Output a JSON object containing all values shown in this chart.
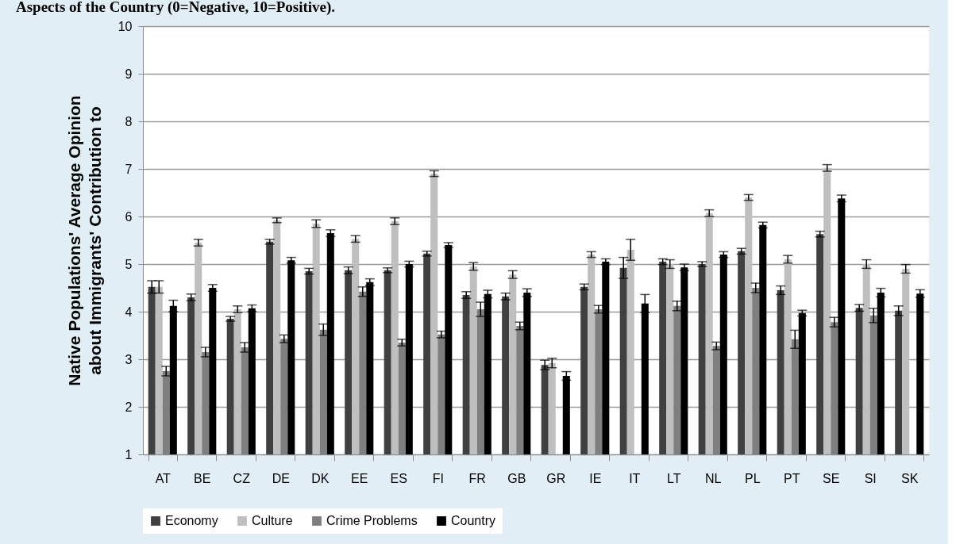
{
  "chart_data": {
    "type": "bar",
    "title": "Aspects of the Country (0=Negative, 10=Positive).",
    "ylabel": "Native Populations' Average Opinion\nabout Immigrants' Contribution to",
    "categories": [
      "AT",
      "BE",
      "CZ",
      "DE",
      "DK",
      "EE",
      "ES",
      "FI",
      "FR",
      "GB",
      "GR",
      "IE",
      "IT",
      "LT",
      "NL",
      "PL",
      "PT",
      "SE",
      "SI",
      "SK"
    ],
    "series": [
      {
        "name": "Economy",
        "color": "#404040",
        "values": [
          4.52,
          4.3,
          3.85,
          5.47,
          4.85,
          4.87,
          4.87,
          5.22,
          4.35,
          4.32,
          2.88,
          4.52,
          4.92,
          5.05,
          5.0,
          5.27,
          4.45,
          5.63,
          4.08,
          4.02
        ],
        "errors": [
          0.13,
          0.07,
          0.05,
          0.05,
          0.06,
          0.07,
          0.05,
          0.05,
          0.07,
          0.07,
          0.1,
          0.06,
          0.22,
          0.06,
          0.05,
          0.06,
          0.09,
          0.06,
          0.07,
          0.1
        ]
      },
      {
        "name": "Culture",
        "color": "#bfbfbf",
        "values": [
          4.52,
          5.45,
          4.05,
          5.92,
          5.85,
          5.53,
          5.9,
          6.9,
          4.95,
          4.78,
          2.92,
          5.2,
          5.3,
          5.0,
          6.07,
          6.4,
          5.1,
          7.02,
          5.0,
          4.9
        ],
        "errors": [
          0.13,
          0.07,
          0.07,
          0.05,
          0.08,
          0.07,
          0.07,
          0.06,
          0.08,
          0.08,
          0.1,
          0.06,
          0.22,
          0.09,
          0.07,
          0.06,
          0.08,
          0.07,
          0.09,
          0.09
        ]
      },
      {
        "name": "Crime Problems",
        "color": "#7f7f7f",
        "values": [
          2.75,
          3.15,
          3.25,
          3.43,
          3.62,
          4.42,
          3.35,
          3.52,
          4.05,
          3.7,
          null,
          4.05,
          null,
          4.12,
          3.28,
          4.5,
          3.42,
          3.78,
          3.92,
          null
        ],
        "errors": [
          0.1,
          0.1,
          0.1,
          0.08,
          0.12,
          0.1,
          0.07,
          0.07,
          0.15,
          0.08,
          null,
          0.08,
          null,
          0.1,
          0.08,
          0.1,
          0.19,
          0.1,
          0.15,
          null
        ]
      },
      {
        "name": "Country",
        "color": "#000000",
        "values": [
          4.12,
          4.5,
          4.07,
          5.08,
          5.65,
          4.62,
          5.0,
          5.4,
          4.37,
          4.4,
          2.65,
          5.05,
          4.17,
          4.93,
          5.2,
          5.82,
          3.97,
          6.38,
          4.4,
          4.38
        ],
        "errors": [
          0.12,
          0.07,
          0.07,
          0.06,
          0.07,
          0.07,
          0.06,
          0.05,
          0.08,
          0.08,
          0.09,
          0.06,
          0.19,
          0.07,
          0.06,
          0.06,
          0.06,
          0.07,
          0.09,
          0.08
        ]
      }
    ],
    "ylim": [
      1,
      10
    ],
    "yticks": [
      1,
      2,
      3,
      4,
      5,
      6,
      7,
      8,
      9,
      10
    ],
    "grid": "y",
    "legend": "bottom"
  }
}
